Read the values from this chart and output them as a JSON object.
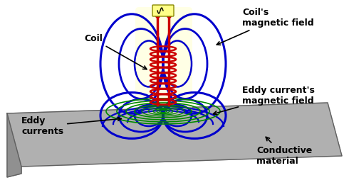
{
  "background_color": "#ffffff",
  "plate_color": "#b0b0b0",
  "plate_edge_color": "#606060",
  "coil_color": "#cc0000",
  "coil_field_color": "#0000cc",
  "eddy_field_color": "#008800",
  "ac_box_color": "#ffff88",
  "ac_box_edge": "#888800",
  "labels": {
    "coil": "Coil",
    "coils_field": "Coil's\nmagnetic field",
    "eddy_currents": "Eddy\ncurrents",
    "eddy_field": "Eddy current's\nmagnetic field",
    "conductive": "Conductive\nmaterial"
  },
  "label_fontsize": 9,
  "figsize": [
    4.9,
    2.54
  ],
  "dpi": 100
}
